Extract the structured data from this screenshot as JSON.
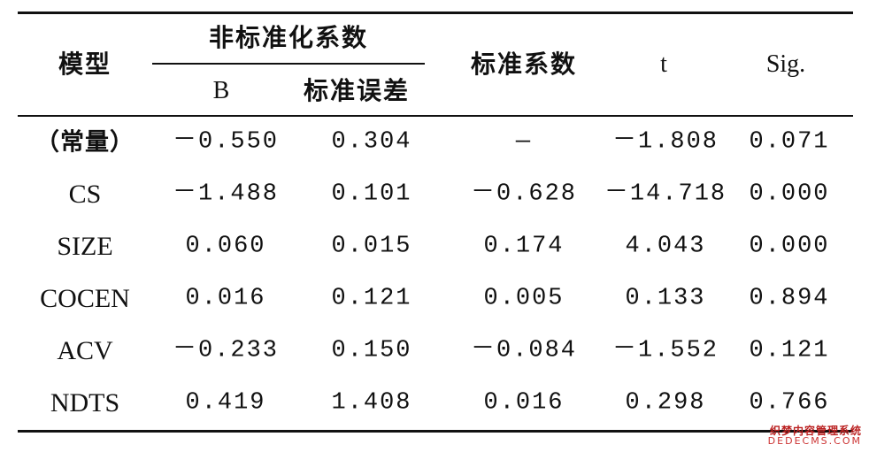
{
  "table": {
    "headers": {
      "model": "模型",
      "unstd_group": "非标准化系数",
      "b": "B",
      "std_error": "标准误差",
      "std_coef": "标准系数",
      "t": "t",
      "sig": "Sig."
    },
    "rows": [
      {
        "label": "（常量）",
        "b": "－0.550",
        "se": "0.304",
        "beta": "—",
        "t": "－1.808",
        "sig": "0.071"
      },
      {
        "label": "CS",
        "b": "－1.488",
        "se": "0.101",
        "beta": "－0.628",
        "t": "－14.718",
        "sig": "0.000"
      },
      {
        "label": "SIZE",
        "b": "0.060",
        "se": "0.015",
        "beta": "0.174",
        "t": "4.043",
        "sig": "0.000"
      },
      {
        "label": "COCEN",
        "b": "0.016",
        "se": "0.121",
        "beta": "0.005",
        "t": "0.133",
        "sig": "0.894"
      },
      {
        "label": "ACV",
        "b": "－0.233",
        "se": "0.150",
        "beta": "－0.084",
        "t": "－1.552",
        "sig": "0.121"
      },
      {
        "label": "NDTS",
        "b": "0.419",
        "se": "1.408",
        "beta": "0.016",
        "t": "0.298",
        "sig": "0.766"
      }
    ]
  },
  "watermark": {
    "line1": "织梦内容管理系统",
    "line2": "DEDECMS.COM"
  }
}
